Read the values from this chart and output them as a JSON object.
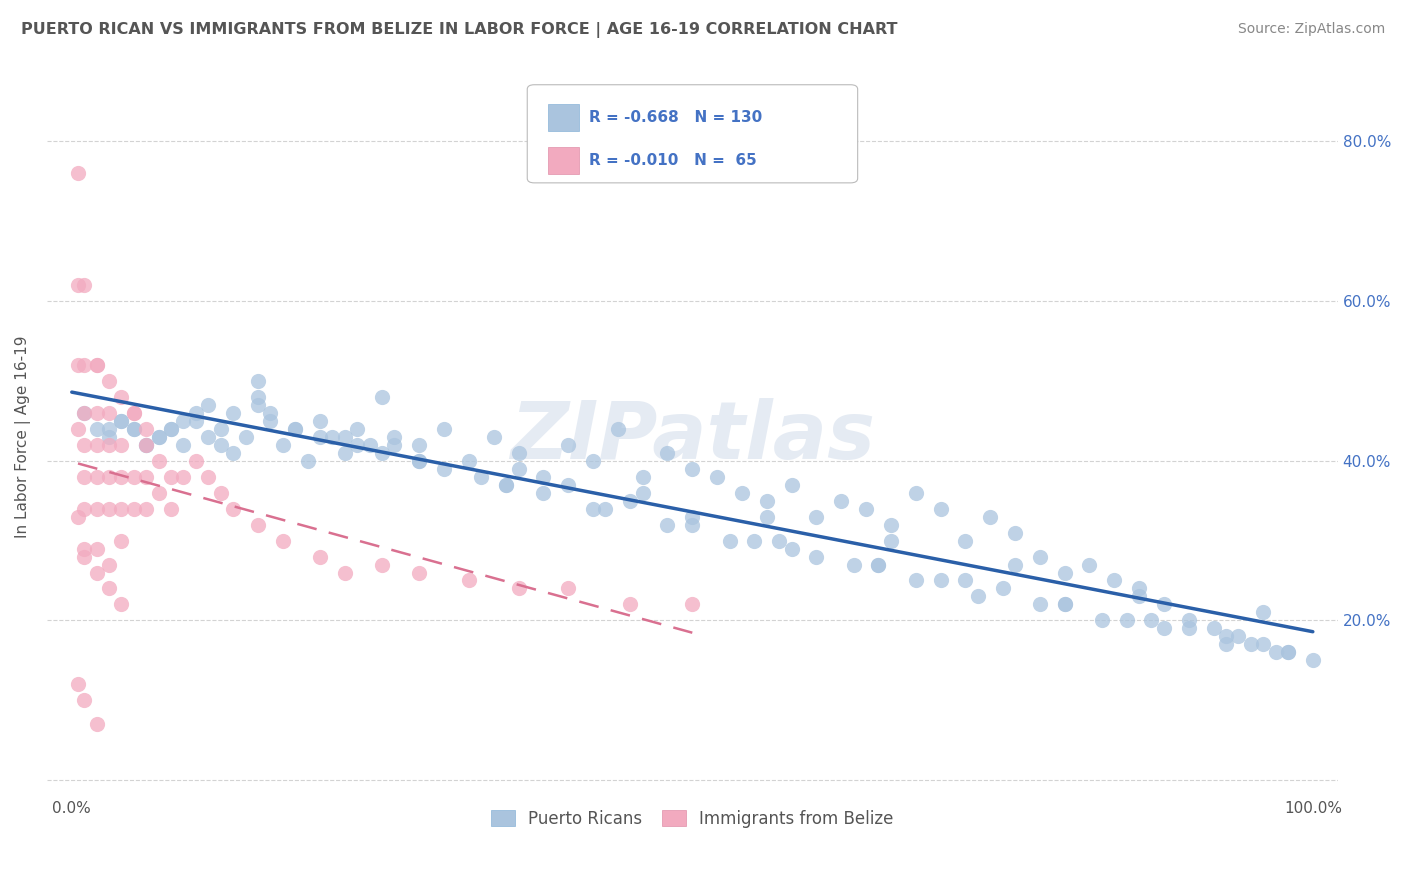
{
  "title": "PUERTO RICAN VS IMMIGRANTS FROM BELIZE IN LABOR FORCE | AGE 16-19 CORRELATION CHART",
  "source": "Source: ZipAtlas.com",
  "ylabel": "In Labor Force | Age 16-19",
  "xlim": [
    -0.02,
    1.02
  ],
  "ylim": [
    -0.02,
    0.88
  ],
  "blue_R": "-0.668",
  "blue_N": "130",
  "pink_R": "-0.010",
  "pink_N": "65",
  "blue_color": "#aac4de",
  "pink_color": "#f2aabf",
  "blue_line_color": "#2a5fa8",
  "pink_line_color": "#d97090",
  "watermark": "ZIPatlas",
  "background_color": "#ffffff",
  "grid_color": "#c8c8c8",
  "blue_scatter_x": [
    0.01,
    0.02,
    0.03,
    0.04,
    0.05,
    0.06,
    0.07,
    0.08,
    0.09,
    0.1,
    0.11,
    0.12,
    0.13,
    0.14,
    0.15,
    0.16,
    0.17,
    0.18,
    0.19,
    0.2,
    0.21,
    0.22,
    0.23,
    0.24,
    0.25,
    0.26,
    0.28,
    0.3,
    0.32,
    0.34,
    0.36,
    0.38,
    0.4,
    0.42,
    0.44,
    0.46,
    0.48,
    0.5,
    0.52,
    0.54,
    0.56,
    0.58,
    0.6,
    0.62,
    0.64,
    0.66,
    0.68,
    0.7,
    0.72,
    0.74,
    0.76,
    0.78,
    0.8,
    0.82,
    0.84,
    0.86,
    0.88,
    0.9,
    0.92,
    0.94,
    0.96,
    0.98,
    1.0,
    0.05,
    0.1,
    0.15,
    0.2,
    0.25,
    0.3,
    0.35,
    0.4,
    0.45,
    0.5,
    0.55,
    0.6,
    0.65,
    0.7,
    0.75,
    0.8,
    0.85,
    0.9,
    0.95,
    0.08,
    0.13,
    0.18,
    0.23,
    0.28,
    0.33,
    0.38,
    0.43,
    0.48,
    0.53,
    0.58,
    0.63,
    0.68,
    0.73,
    0.78,
    0.83,
    0.88,
    0.93,
    0.98,
    0.03,
    0.06,
    0.09,
    0.12,
    0.15,
    0.22,
    0.28,
    0.35,
    0.42,
    0.5,
    0.57,
    0.65,
    0.72,
    0.8,
    0.87,
    0.93,
    0.97,
    0.04,
    0.07,
    0.11,
    0.16,
    0.26,
    0.36,
    0.46,
    0.56,
    0.66,
    0.76,
    0.86,
    0.96
  ],
  "blue_scatter_y": [
    0.46,
    0.44,
    0.43,
    0.45,
    0.44,
    0.42,
    0.43,
    0.44,
    0.42,
    0.45,
    0.43,
    0.42,
    0.41,
    0.43,
    0.5,
    0.46,
    0.42,
    0.44,
    0.4,
    0.45,
    0.43,
    0.41,
    0.44,
    0.42,
    0.48,
    0.43,
    0.42,
    0.44,
    0.4,
    0.43,
    0.41,
    0.38,
    0.42,
    0.4,
    0.44,
    0.38,
    0.41,
    0.39,
    0.38,
    0.36,
    0.35,
    0.37,
    0.33,
    0.35,
    0.34,
    0.32,
    0.36,
    0.34,
    0.3,
    0.33,
    0.31,
    0.28,
    0.26,
    0.27,
    0.25,
    0.23,
    0.22,
    0.2,
    0.19,
    0.18,
    0.17,
    0.16,
    0.15,
    0.44,
    0.46,
    0.48,
    0.43,
    0.41,
    0.39,
    0.37,
    0.37,
    0.35,
    0.33,
    0.3,
    0.28,
    0.27,
    0.25,
    0.24,
    0.22,
    0.2,
    0.19,
    0.17,
    0.44,
    0.46,
    0.44,
    0.42,
    0.4,
    0.38,
    0.36,
    0.34,
    0.32,
    0.3,
    0.29,
    0.27,
    0.25,
    0.23,
    0.22,
    0.2,
    0.19,
    0.17,
    0.16,
    0.44,
    0.42,
    0.45,
    0.44,
    0.47,
    0.43,
    0.4,
    0.37,
    0.34,
    0.32,
    0.3,
    0.27,
    0.25,
    0.22,
    0.2,
    0.18,
    0.16,
    0.45,
    0.43,
    0.47,
    0.45,
    0.42,
    0.39,
    0.36,
    0.33,
    0.3,
    0.27,
    0.24,
    0.21
  ],
  "pink_scatter_x": [
    0.005,
    0.005,
    0.005,
    0.005,
    0.005,
    0.01,
    0.01,
    0.01,
    0.01,
    0.01,
    0.01,
    0.01,
    0.02,
    0.02,
    0.02,
    0.02,
    0.02,
    0.02,
    0.03,
    0.03,
    0.03,
    0.03,
    0.03,
    0.04,
    0.04,
    0.04,
    0.04,
    0.05,
    0.05,
    0.05,
    0.06,
    0.06,
    0.06,
    0.07,
    0.07,
    0.08,
    0.08,
    0.09,
    0.1,
    0.11,
    0.12,
    0.13,
    0.15,
    0.17,
    0.2,
    0.22,
    0.25,
    0.28,
    0.32,
    0.36,
    0.4,
    0.45,
    0.5,
    0.02,
    0.03,
    0.04,
    0.05,
    0.06,
    0.01,
    0.02,
    0.03,
    0.04,
    0.005,
    0.01,
    0.02
  ],
  "pink_scatter_y": [
    0.76,
    0.62,
    0.52,
    0.44,
    0.33,
    0.62,
    0.52,
    0.46,
    0.42,
    0.38,
    0.34,
    0.29,
    0.52,
    0.46,
    0.42,
    0.38,
    0.34,
    0.29,
    0.46,
    0.42,
    0.38,
    0.34,
    0.27,
    0.42,
    0.38,
    0.34,
    0.3,
    0.46,
    0.38,
    0.34,
    0.42,
    0.38,
    0.34,
    0.4,
    0.36,
    0.38,
    0.34,
    0.38,
    0.4,
    0.38,
    0.36,
    0.34,
    0.32,
    0.3,
    0.28,
    0.26,
    0.27,
    0.26,
    0.25,
    0.24,
    0.24,
    0.22,
    0.22,
    0.52,
    0.5,
    0.48,
    0.46,
    0.44,
    0.28,
    0.26,
    0.24,
    0.22,
    0.12,
    0.1,
    0.07
  ]
}
